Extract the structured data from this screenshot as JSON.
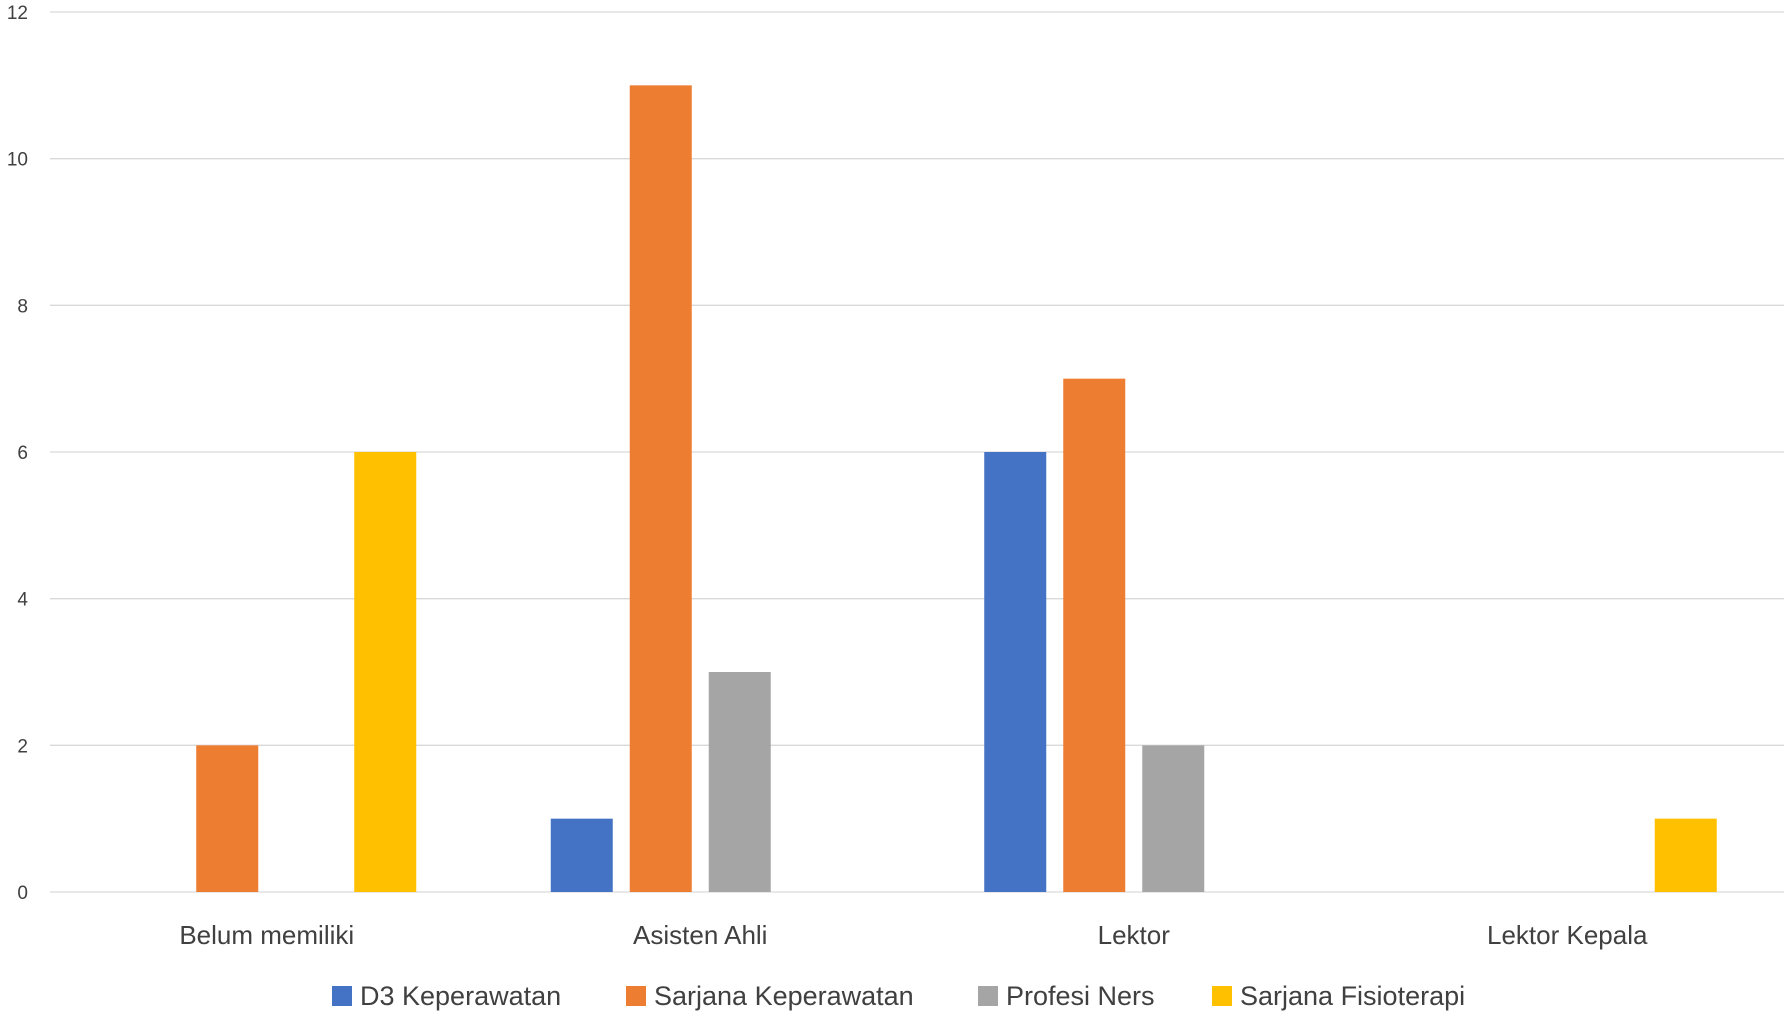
{
  "chart_data": {
    "type": "bar",
    "categories": [
      "Belum memiliki",
      "Asisten Ahli",
      "Lektor",
      "Lektor Kepala"
    ],
    "series": [
      {
        "name": "D3 Keperawatan",
        "color": "#4472C4",
        "values": [
          0,
          1,
          6,
          0
        ]
      },
      {
        "name": "Sarjana Keperawatan",
        "color": "#ED7D31",
        "values": [
          2,
          11,
          7,
          0
        ]
      },
      {
        "name": "Profesi Ners",
        "color": "#A5A5A5",
        "values": [
          0,
          3,
          2,
          0
        ]
      },
      {
        "name": "Sarjana Fisioterapi",
        "color": "#FFC000",
        "values": [
          6,
          0,
          0,
          1
        ]
      }
    ],
    "ylim": [
      0,
      12
    ],
    "yticks": [
      "0",
      "2",
      "4",
      "6",
      "8",
      "10",
      "12"
    ],
    "grid": true,
    "legend_position": "bottom"
  }
}
